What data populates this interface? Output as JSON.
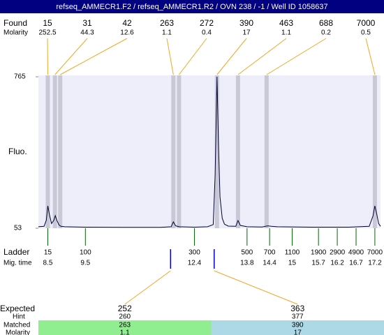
{
  "chart_data": {
    "type": "line",
    "title": "refseq_AMMECR1.F2 / refseq_AMMECR1.R2 / OVN 238 / -1 / Well ID 1058637",
    "y_label": "Fluo.",
    "ylim": [
      53,
      765
    ],
    "yticks": [
      53,
      765
    ],
    "xlim": [
      8.25,
      17.35
    ],
    "color": "#000033",
    "band_color": "#c8c8d6",
    "plot_color": "#eeeefa",
    "x": [
      8.25,
      8.4,
      8.46,
      8.5,
      8.54,
      8.6,
      8.66,
      8.7,
      8.74,
      8.8,
      8.85,
      8.95,
      9.5,
      10.5,
      11.5,
      11.78,
      11.84,
      11.9,
      12.0,
      12.4,
      12.75,
      12.9,
      12.95,
      13.0,
      13.04,
      13.08,
      13.14,
      13.2,
      13.3,
      13.5,
      13.56,
      13.62,
      13.8,
      14.2,
      14.35,
      14.45,
      14.6,
      15.5,
      16.5,
      17.05,
      17.15,
      17.2,
      17.25,
      17.3,
      17.35
    ],
    "values": [
      60,
      62,
      90,
      158,
      120,
      75,
      90,
      112,
      90,
      68,
      62,
      60,
      58,
      57,
      57,
      60,
      83,
      64,
      60,
      58,
      60,
      70,
      300,
      765,
      450,
      200,
      100,
      72,
      63,
      62,
      89,
      66,
      60,
      59,
      64,
      62,
      60,
      58,
      58,
      62,
      110,
      158,
      120,
      75,
      62
    ],
    "found": {
      "label": "Found",
      "molarity_label": "Molarity",
      "sizes": [
        15,
        31,
        42,
        263,
        272,
        390,
        463,
        688,
        7000
      ],
      "molarity": [
        252.5,
        44.3,
        12.6,
        1.1,
        0.4,
        17,
        1.1,
        0.2,
        0.5
      ],
      "times": [
        8.5,
        8.69,
        8.83,
        11.84,
        11.99,
        13.0,
        13.56,
        14.32,
        17.2
      ],
      "connector_color": "#f5a623"
    },
    "ladder": {
      "label": "Ladder",
      "time_label": "Mig. time",
      "sizes": [
        15,
        100,
        300,
        500,
        700,
        1100,
        1900,
        2900,
        4900,
        7000
      ],
      "times": [
        8.5,
        9.5,
        12.4,
        13.8,
        14.4,
        15,
        15.7,
        16.2,
        16.7,
        17.2
      ],
      "color": "#006400"
    },
    "expected": {
      "label": "Expected",
      "hint_label": "Hint",
      "matched_label": "Matched",
      "molarity_label": "Molarity",
      "marker_color": "#0000cc",
      "groups": [
        {
          "expected": 252,
          "hint": 260,
          "matched": 263,
          "molarity": 1.1,
          "color": "#90ee90"
        },
        {
          "expected": 363,
          "hint": 377,
          "matched": 390,
          "molarity": 17,
          "color": "#add8e6"
        }
      ]
    }
  }
}
